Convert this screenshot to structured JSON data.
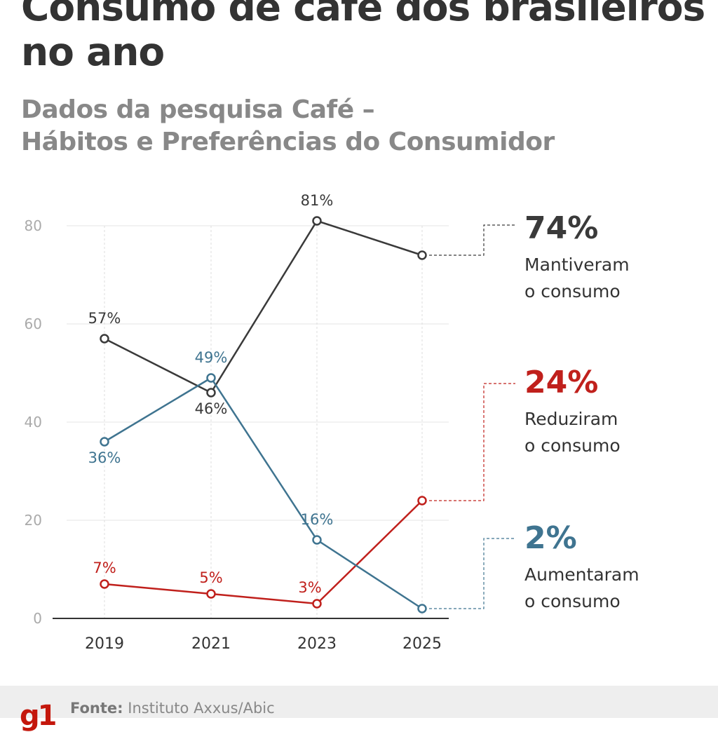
{
  "title": "Consumo de café dos brasileiros no ano",
  "subtitle_line1": "Dados da pesquisa Café –",
  "subtitle_line2": "Hábitos e Preferências do Consumidor",
  "footer": {
    "logo": "g1",
    "source_label": "Fonte:",
    "source": "Instituto Axxus/Abic"
  },
  "colors": {
    "mantiveram": "#3a3a3a",
    "aumentaram": "#3f7490",
    "reduziram": "#c0201c",
    "grid": "#e6e6e6",
    "axis": "#333333"
  },
  "chart_data": {
    "type": "line",
    "categories": [
      "2019",
      "2021",
      "2023",
      "2025"
    ],
    "ylim": [
      0,
      80
    ],
    "yticks": [
      0,
      20,
      40,
      60,
      80
    ],
    "grid": true,
    "series": [
      {
        "name": "Mantiveram o consumo",
        "headline": "74%",
        "label1": "Mantiveram",
        "label2": "o consumo",
        "color": "#3a3a3a",
        "values": [
          57,
          46,
          81,
          74
        ],
        "data_labels": [
          "57%",
          "46%",
          "81%",
          ""
        ]
      },
      {
        "name": "Reduziram o consumo",
        "headline": "24%",
        "label1": "Reduziram",
        "label2": "o consumo",
        "color": "#c0201c",
        "values": [
          7,
          5,
          3,
          24
        ],
        "data_labels": [
          "7%",
          "5%",
          "3%",
          ""
        ]
      },
      {
        "name": "Aumentaram o consumo",
        "headline": "2%",
        "label1": "Aumentaram",
        "label2": "o consumo",
        "color": "#3f7490",
        "values": [
          36,
          49,
          16,
          2
        ],
        "data_labels": [
          "36%",
          "49%",
          "16%",
          ""
        ]
      }
    ]
  }
}
